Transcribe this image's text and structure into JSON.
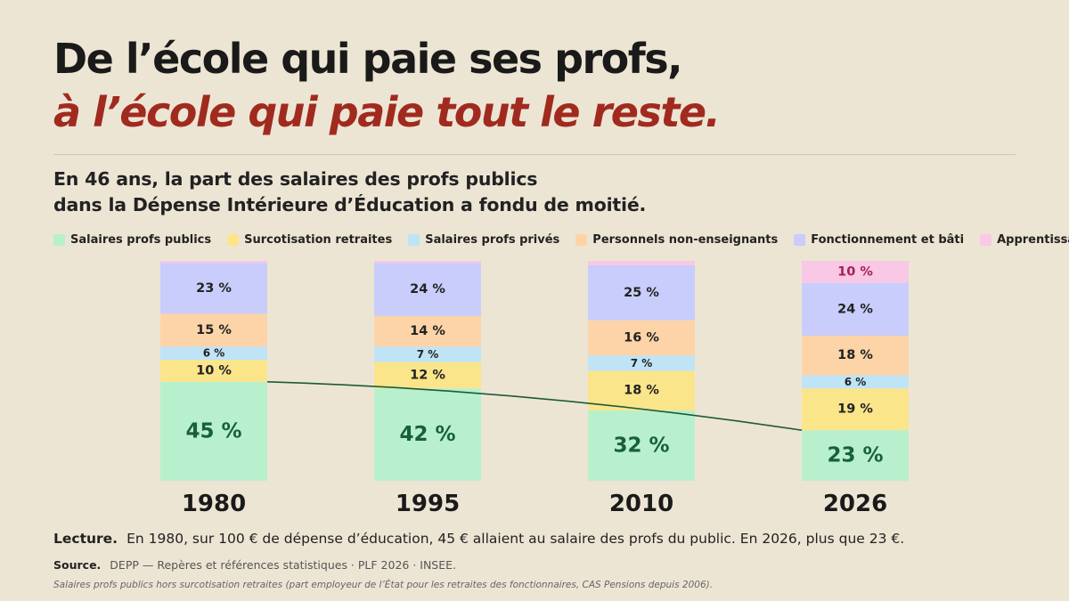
{
  "header": {
    "title_line1": "De l’école qui paie ses profs,",
    "title_line2": "à l’école qui paie tout le reste.",
    "subtitle_line1": "En 46 ans, la part des salaires des profs publics",
    "subtitle_line2": "dans la Dépense Intérieure d’Éducation a fondu de moitié."
  },
  "chart_data": {
    "type": "bar",
    "stacked": true,
    "categories": [
      "1980",
      "1995",
      "2010",
      "2026"
    ],
    "series": [
      {
        "name": "Salaires profs publics",
        "color": "#b8f0cd",
        "label_color": "#17603b",
        "values": [
          45,
          42,
          32,
          23
        ],
        "labels": [
          "45 %",
          "42 %",
          "32 %",
          "23 %"
        ]
      },
      {
        "name": "Surcotisation retraites",
        "color": "#fbe58a",
        "label_color": "#222222",
        "values": [
          10,
          12,
          18,
          19
        ],
        "labels": [
          "10 %",
          "12 %",
          "18 %",
          "19 %"
        ]
      },
      {
        "name": "Salaires profs privés",
        "color": "#bfe4f6",
        "label_color": "#222222",
        "values": [
          6,
          7,
          7,
          6
        ],
        "labels": [
          "6 %",
          "7 %",
          "7 %",
          "6 %"
        ]
      },
      {
        "name": "Personnels non-enseignants",
        "color": "#fdd4a8",
        "label_color": "#222222",
        "values": [
          15,
          14,
          16,
          18
        ],
        "labels": [
          "15 %",
          "14 %",
          "16 %",
          "18 %"
        ]
      },
      {
        "name": "Fonctionnement et bâti",
        "color": "#c8cdfb",
        "label_color": "#222222",
        "values": [
          23,
          24,
          25,
          24
        ],
        "labels": [
          "23 %",
          "24 %",
          "25 %",
          "24 %"
        ]
      },
      {
        "name": "Apprentissage",
        "color": "#f8c8e6",
        "label_color": "#a8204f",
        "values": [
          1,
          1,
          2,
          10
        ],
        "labels": [
          "",
          "",
          "",
          "10 %"
        ]
      }
    ],
    "trend_line": {
      "series": "Salaires profs publics",
      "color": "#1d5a3a"
    },
    "legend_position": "top",
    "ylim": [
      0,
      100
    ]
  },
  "footer": {
    "lecture_label": "Lecture.",
    "lecture_text": "En 1980, sur 100 € de dépense d’éducation, 45 € allaient au salaire des profs du public. En 2026, plus que 23 €.",
    "source_label": "Source.",
    "source_text": "DEPP — Repères et références statistiques · PLF 2026 · INSEE.",
    "note": "Salaires profs publics hors surcotisation retraites (part employeur de l’État pour les retraites des fonctionnaires, CAS Pensions depuis 2006)."
  }
}
